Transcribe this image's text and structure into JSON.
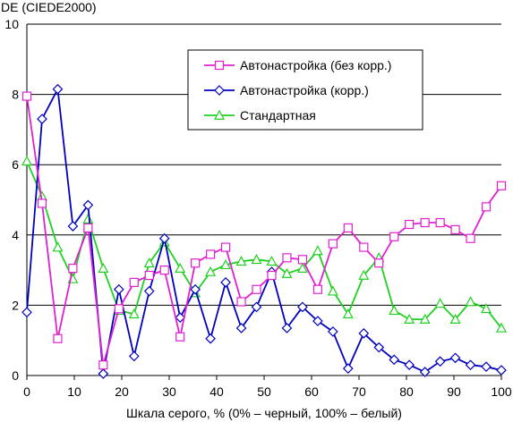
{
  "chart_data": {
    "type": "line",
    "title": "",
    "ylabel": "DE (CIEDE2000)",
    "xlabel": "Шкала серого, % (0% – черный, 100% – белый)",
    "xlim": [
      0,
      100
    ],
    "ylim": [
      0,
      10
    ],
    "x_ticks": [
      0,
      10,
      20,
      30,
      40,
      50,
      60,
      70,
      80,
      90,
      100
    ],
    "y_ticks": [
      0,
      2,
      4,
      6,
      8,
      10
    ],
    "grid": "horizontal",
    "legend_position": "top-right",
    "x": [
      0,
      3.2,
      6.5,
      9.7,
      12.9,
      16.1,
      19.4,
      22.6,
      25.8,
      29.0,
      32.3,
      35.5,
      38.7,
      41.9,
      45.2,
      48.4,
      51.6,
      54.8,
      58.1,
      61.3,
      64.5,
      67.7,
      71.0,
      74.2,
      77.4,
      80.6,
      83.9,
      87.1,
      90.3,
      93.5,
      96.8,
      100
    ],
    "series": [
      {
        "name": "Автонастройка (без корр.)",
        "color": "#e020d0",
        "marker": "square",
        "values": [
          7.95,
          4.9,
          1.05,
          3.05,
          4.2,
          0.3,
          1.9,
          2.65,
          2.85,
          3.0,
          1.1,
          3.2,
          3.45,
          3.65,
          2.1,
          2.45,
          2.85,
          3.35,
          3.3,
          2.45,
          3.75,
          4.2,
          3.65,
          3.2,
          3.95,
          4.3,
          4.35,
          4.35,
          4.15,
          3.9,
          4.8,
          5.4
        ]
      },
      {
        "name": "Автонастройка (корр.)",
        "color": "#0000c0",
        "marker": "diamond",
        "values": [
          1.8,
          7.3,
          8.15,
          4.25,
          4.85,
          0.05,
          2.45,
          0.55,
          2.4,
          3.9,
          1.65,
          2.45,
          1.05,
          2.65,
          1.35,
          1.95,
          2.95,
          1.35,
          1.95,
          1.55,
          1.25,
          0.2,
          1.2,
          0.8,
          0.45,
          0.3,
          0.1,
          0.4,
          0.5,
          0.3,
          0.25,
          0.15
        ]
      },
      {
        "name": "Стандартная",
        "color": "#20d020",
        "marker": "triangle",
        "values": [
          6.1,
          5.1,
          3.65,
          2.75,
          4.45,
          3.05,
          1.85,
          1.75,
          3.2,
          3.8,
          3.05,
          2.35,
          2.95,
          3.15,
          3.25,
          3.3,
          3.25,
          2.9,
          3.05,
          3.55,
          2.4,
          1.75,
          2.85,
          3.35,
          1.85,
          1.6,
          1.6,
          2.05,
          1.6,
          2.1,
          1.9,
          1.35
        ]
      }
    ]
  }
}
